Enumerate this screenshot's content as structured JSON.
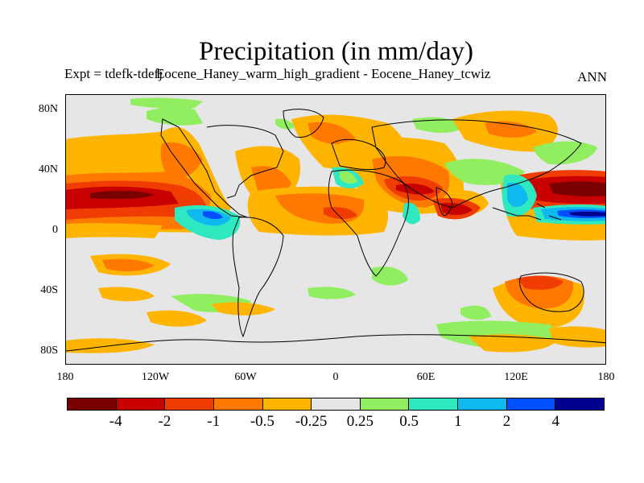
{
  "title": "Precipitation (in mm/day)",
  "subtitle": "Expt = tdefk-tdefj",
  "subtitle_overlap": "Eocene_Haney_warm_high_gradient - Eocene_Haney_tcwiz",
  "season": "ANN",
  "axes": {
    "x_ticks": [
      "180",
      "120W",
      "60W",
      "0",
      "60E",
      "120E",
      "180"
    ],
    "y_ticks": [
      "80N",
      "40N",
      "0",
      "40S",
      "80S"
    ]
  },
  "colorbar": {
    "colors": [
      "#7a0000",
      "#c80000",
      "#f03c00",
      "#ff7800",
      "#ffb400",
      "#e6e6e6",
      "#90ee60",
      "#30e8c0",
      "#10b8f0",
      "#0050ff",
      "#000090"
    ],
    "labels": [
      "-4",
      "-2",
      "-1",
      "-0.5",
      "-0.25",
      "0.25",
      "0.5",
      "1",
      "2",
      "4"
    ]
  }
}
